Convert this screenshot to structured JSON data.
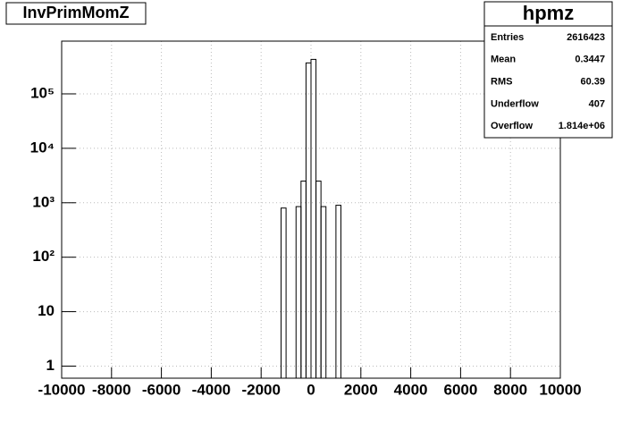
{
  "chart_data": {
    "type": "histogram",
    "title": "InvPrimMomZ",
    "bins": [
      -1200,
      -1000,
      -800,
      -600,
      -400,
      -200,
      0,
      200,
      400,
      600,
      800,
      1000,
      1200
    ],
    "values": [
      800,
      0,
      0,
      850,
      2500,
      370000,
      430000,
      2500,
      850,
      0,
      0,
      900
    ],
    "color": "#000000",
    "xlim": [
      -10000,
      10000
    ],
    "xticks": [
      -10000,
      -8000,
      -6000,
      -4000,
      -2000,
      0,
      2000,
      4000,
      6000,
      8000,
      10000
    ],
    "ylim": [
      0.6,
      930000
    ],
    "log_y": true,
    "yticks": [
      1,
      10,
      {
        "value": 100,
        "label": "10²"
      },
      {
        "value": 1000,
        "label": "10³"
      },
      {
        "value": 10000,
        "label": "10⁴"
      },
      {
        "value": 100000,
        "label": "10⁵"
      }
    ],
    "grid": true,
    "stats": {
      "title": "hpmz",
      "rows": [
        [
          "Entries",
          "2616423"
        ],
        [
          "Mean",
          "0.3447"
        ],
        [
          "RMS",
          "60.39"
        ],
        [
          "Underflow",
          "407"
        ],
        [
          "Overflow",
          "1.814e+06"
        ]
      ]
    }
  }
}
